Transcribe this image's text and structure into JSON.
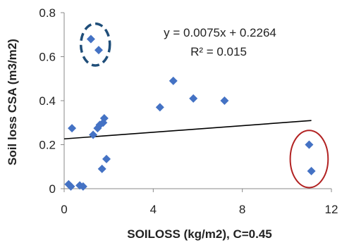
{
  "chart_data": {
    "type": "scatter",
    "title": "",
    "xlabel": "SOILOSS (kg/m2), C=0.45",
    "ylabel": "Soil loss CSA (m3/m2)",
    "xlim": [
      0,
      12
    ],
    "ylim": [
      0,
      0.8
    ],
    "xticks": [
      0,
      4,
      8,
      12
    ],
    "yticks": [
      0,
      0.2,
      0.4,
      0.6,
      0.8
    ],
    "xtick_labels": [
      "0",
      "4",
      "8",
      "12"
    ],
    "ytick_labels": [
      "0",
      "0.2",
      "0.4",
      "0.6",
      "0.8"
    ],
    "grid": false,
    "legend": "none",
    "marker_color": "#4472C4",
    "series": [
      {
        "marker": "diamond",
        "points": [
          [
            0.2,
            0.02
          ],
          [
            0.3,
            0.01
          ],
          [
            0.35,
            0.275
          ],
          [
            0.7,
            0.015
          ],
          [
            0.85,
            0.01
          ],
          [
            1.2,
            0.68
          ],
          [
            1.3,
            0.245
          ],
          [
            1.5,
            0.275
          ],
          [
            1.55,
            0.63
          ],
          [
            1.6,
            0.29
          ],
          [
            1.7,
            0.09
          ],
          [
            1.75,
            0.3
          ],
          [
            1.8,
            0.32
          ],
          [
            1.9,
            0.135
          ],
          [
            4.3,
            0.37
          ],
          [
            4.9,
            0.49
          ],
          [
            5.8,
            0.41
          ],
          [
            7.2,
            0.4
          ],
          [
            11.0,
            0.2
          ],
          [
            11.1,
            0.08
          ]
        ]
      }
    ],
    "trendline": {
      "slope": 0.0075,
      "intercept": 0.2264,
      "x_range": [
        0,
        11.1
      ],
      "color": "#000000"
    },
    "annotations": {
      "equation": "y = 0.0075x + 0.2264",
      "r_squared": "R² = 0.015"
    },
    "highlights": [
      {
        "shape": "dashed-circle",
        "color": "#1F4E79",
        "center": [
          1.4,
          0.655
        ],
        "radius_x": 0.65,
        "radius_y": 0.095
      },
      {
        "shape": "ellipse",
        "color": "#B22222",
        "center": [
          11.0,
          0.135
        ],
        "radius_x": 0.85,
        "radius_y": 0.13
      }
    ]
  }
}
